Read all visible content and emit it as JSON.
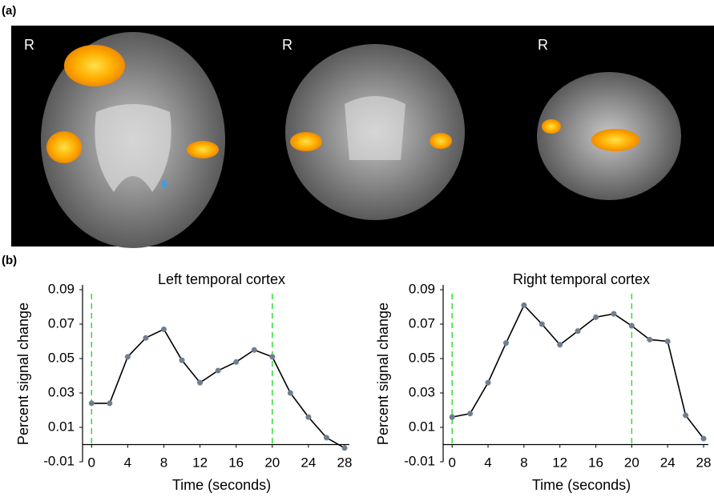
{
  "panels": {
    "a": {
      "label": "(a)",
      "orientation_labels": [
        "R",
        "R",
        "R"
      ]
    },
    "b": {
      "label": "(b)"
    }
  },
  "chart_data": [
    {
      "type": "line",
      "title": "Left temporal cortex",
      "xlabel": "Time (seconds)",
      "ylabel": "Percent signal change",
      "x": [
        0,
        2,
        4,
        6,
        8,
        10,
        12,
        14,
        16,
        18,
        20,
        22,
        24,
        26,
        28
      ],
      "values": [
        0.024,
        0.024,
        0.051,
        0.062,
        0.067,
        0.049,
        0.036,
        0.043,
        0.048,
        0.055,
        0.051,
        0.03,
        0.016,
        0.004,
        -0.002
      ],
      "color": "#000000",
      "marker_color": "#6f7f90",
      "xlim": [
        -1,
        28
      ],
      "xticks": [
        0,
        4,
        8,
        12,
        16,
        20,
        24,
        28
      ],
      "ylim": [
        -0.01,
        0.09
      ],
      "yticks": [
        -0.01,
        0.01,
        0.03,
        0.05,
        0.07,
        0.09
      ],
      "baseline": 0,
      "stimulus_lines": [
        0,
        20
      ],
      "stimulus_color": "#33dd33"
    },
    {
      "type": "line",
      "title": "Right temporal cortex",
      "xlabel": "Time (seconds)",
      "ylabel": "Percent signal change",
      "x": [
        0,
        2,
        4,
        6,
        8,
        10,
        12,
        14,
        16,
        18,
        20,
        22,
        24,
        26,
        28
      ],
      "values": [
        0.016,
        0.018,
        0.036,
        0.059,
        0.081,
        0.07,
        0.058,
        0.066,
        0.074,
        0.076,
        0.069,
        0.061,
        0.06,
        0.017,
        0.0035
      ],
      "color": "#000000",
      "marker_color": "#6f7f90",
      "xlim": [
        -1,
        28
      ],
      "xticks": [
        0,
        4,
        8,
        12,
        16,
        20,
        24,
        28
      ],
      "ylim": [
        -0.01,
        0.09
      ],
      "yticks": [
        -0.01,
        0.01,
        0.03,
        0.05,
        0.07,
        0.09
      ],
      "baseline": 0,
      "stimulus_lines": [
        0,
        20
      ],
      "stimulus_color": "#33dd33"
    }
  ]
}
